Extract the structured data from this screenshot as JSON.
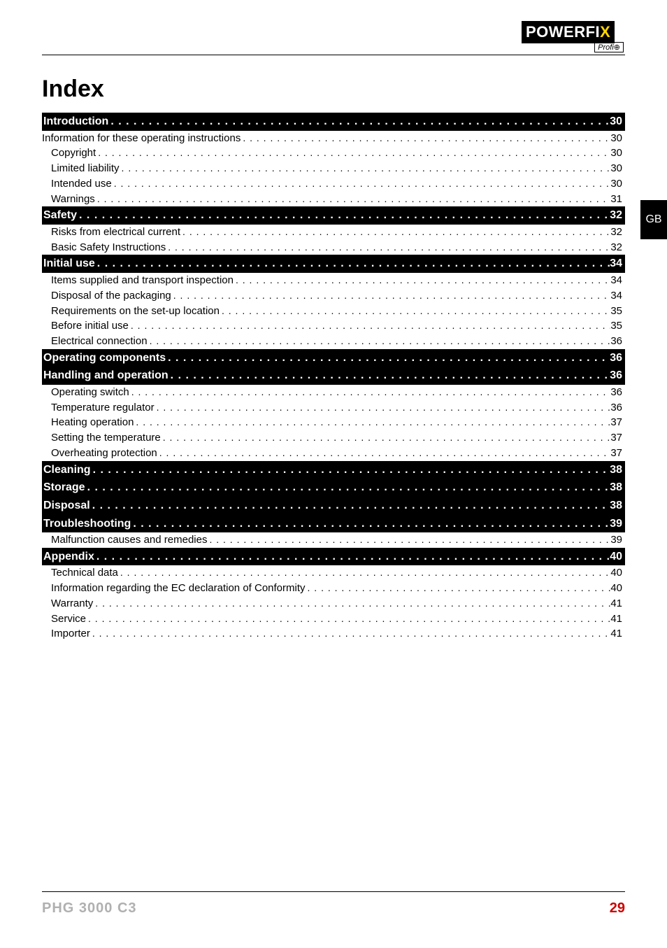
{
  "logo": {
    "main": "POWERFI",
    "accent": "X",
    "sub": "Profi",
    "sub_symbol": "⊕"
  },
  "side_tab": "GB",
  "index_title": "Index",
  "dots": " .  .  .  .  .  .  .  .  .  .  .  .  .  .  .  .  .  .  .  .  .  .  .  .  .  .  .  .  .  .  .  .  .  .  .  .  .  .  .  .  .  .  .  .  .  .  .  .  .  .  .  .  .  .  .  .  .  .  .  .  .  .  .  .  .  .  .  .  .  .  .  .  .  .  .  .  .  .  .  .  .  .  .  .  .  .  .  .  .  .  .  .  .  .  .  .  .  .  .  . ",
  "section_dots": " . . . . . . . . . . . . . . . . . . . . . . . . . . . . . . . . . . . . . . . . . . . . . . . . . . . . . . . . . . . . . . . . . . . . . . . . . . . . . . . . . . . . . . . . . . . . . . . . . . . . ",
  "toc": [
    {
      "type": "section",
      "label": "Introduction",
      "page": "30"
    },
    {
      "type": "line",
      "label": "Information for these operating instructions",
      "page": "30",
      "nosub": true
    },
    {
      "type": "line",
      "label": "Copyright",
      "page": "30"
    },
    {
      "type": "line",
      "label": "Limited liability",
      "page": "30"
    },
    {
      "type": "line",
      "label": "Intended use",
      "page": "30"
    },
    {
      "type": "line",
      "label": "Warnings",
      "page": "31"
    },
    {
      "type": "section",
      "label": "Safety",
      "page": "32"
    },
    {
      "type": "line",
      "label": "Risks from electrical current",
      "page": "32"
    },
    {
      "type": "line",
      "label": "Basic Safety Instructions",
      "page": "32"
    },
    {
      "type": "section",
      "label": "Initial use",
      "page": "34"
    },
    {
      "type": "line",
      "label": "Items supplied and transport inspection",
      "page": "34"
    },
    {
      "type": "line",
      "label": "Disposal of the packaging",
      "page": "34"
    },
    {
      "type": "line",
      "label": "Requirements on the set-up location",
      "page": "35"
    },
    {
      "type": "line",
      "label": "Before initial use",
      "page": "35"
    },
    {
      "type": "line",
      "label": "Electrical connection",
      "page": "36"
    },
    {
      "type": "section",
      "label": "Operating components",
      "page": "36"
    },
    {
      "type": "section",
      "label": "Handling and operation",
      "page": "36"
    },
    {
      "type": "line",
      "label": "Operating switch",
      "page": "36"
    },
    {
      "type": "line",
      "label": "Temperature regulator",
      "page": "36"
    },
    {
      "type": "line",
      "label": "Heating operation",
      "page": "37"
    },
    {
      "type": "line",
      "label": "Setting the temperature",
      "page": "37"
    },
    {
      "type": "line",
      "label": "Overheating protection",
      "page": "37"
    },
    {
      "type": "section",
      "label": "Cleaning",
      "page": "38"
    },
    {
      "type": "section",
      "label": "Storage",
      "page": "38"
    },
    {
      "type": "section",
      "label": "Disposal",
      "page": "38"
    },
    {
      "type": "section",
      "label": "Troubleshooting",
      "page": "39"
    },
    {
      "type": "line",
      "label": "Malfunction causes and remedies",
      "page": "39"
    },
    {
      "type": "section",
      "label": "Appendix",
      "page": "40"
    },
    {
      "type": "line",
      "label": "Technical data",
      "page": "40"
    },
    {
      "type": "line",
      "label": "Information regarding the EC declaration of Conformity",
      "page": "40"
    },
    {
      "type": "line",
      "label": "Warranty",
      "page": "41"
    },
    {
      "type": "line",
      "label": "Service",
      "page": "41"
    },
    {
      "type": "line",
      "label": "Importer",
      "page": "41"
    }
  ],
  "footer": {
    "model": "PHG 3000 C3",
    "page": "29"
  },
  "colors": {
    "background": "#ffffff",
    "text": "#000000",
    "section_bg": "#000000",
    "section_text": "#ffffff",
    "footer_model": "#b0b0b0",
    "footer_page": "#cc0000",
    "logo_accent": "#ffd700"
  },
  "typography": {
    "index_title_fontsize": 34,
    "section_fontsize": 16,
    "line_fontsize": 15,
    "footer_fontsize": 20
  }
}
